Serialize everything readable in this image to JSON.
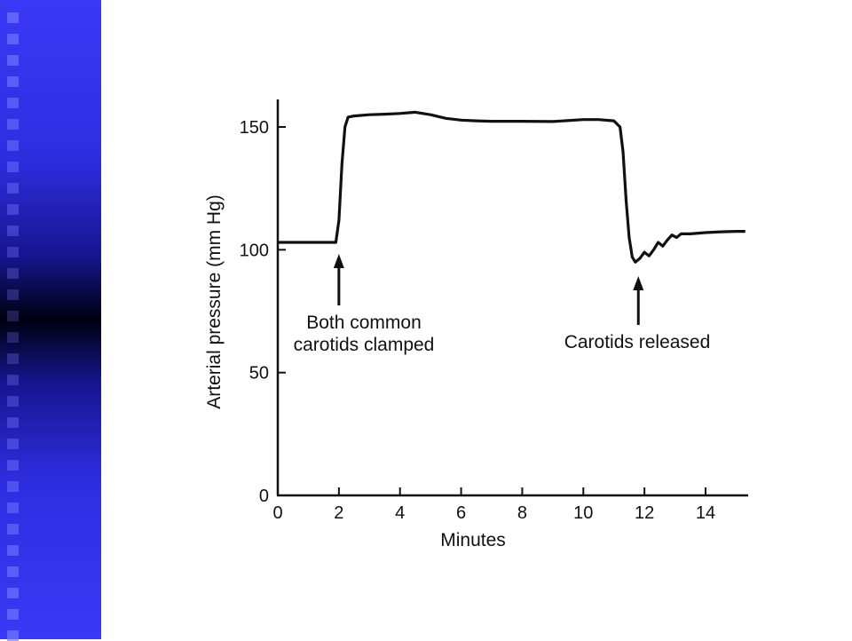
{
  "colors": {
    "sidebar_accent": "#3a3af6",
    "sidebar_dark": "#000010",
    "trace": "#111111"
  },
  "chart_data": {
    "type": "line",
    "title": "",
    "xlabel": "Minutes",
    "ylabel": "Arterial pressure (mm Hg)",
    "xlim": [
      0,
      15.3
    ],
    "ylim": [
      0,
      162
    ],
    "xticks": [
      0,
      2,
      4,
      6,
      8,
      10,
      12,
      14
    ],
    "yticks": [
      0,
      50,
      100,
      150
    ],
    "grid": false,
    "series": [
      {
        "x": [
          0,
          0.5,
          1.0,
          1.5,
          1.8,
          1.9,
          2.0,
          2.1,
          2.2,
          2.3,
          2.5,
          3.0,
          3.5,
          4.0,
          4.5,
          5.0,
          5.5,
          6.0,
          6.5,
          7.0,
          8.0,
          9.0,
          10.0,
          10.5,
          11.0,
          11.2,
          11.3,
          11.4,
          11.5,
          11.6,
          11.7,
          11.85,
          12.0,
          12.15,
          12.3,
          12.45,
          12.6,
          12.75,
          12.9,
          13.05,
          13.2,
          13.5,
          14.0,
          14.5,
          15.0,
          15.3
        ],
        "y": [
          103,
          103,
          103,
          103,
          103,
          103,
          112,
          135,
          150,
          154,
          154.5,
          155,
          155.2,
          155.5,
          156,
          155,
          153.5,
          152.8,
          152.5,
          152.3,
          152.3,
          152.2,
          153,
          153,
          152.5,
          150,
          140,
          120,
          105,
          97,
          95,
          96.5,
          99,
          97.5,
          100,
          103,
          101.5,
          104,
          106,
          105,
          106.5,
          106.5,
          107,
          107.3,
          107.5,
          107.5
        ]
      }
    ],
    "annotations": [
      {
        "x": 2.0,
        "lines": [
          "Both common",
          "carotids clamped"
        ]
      },
      {
        "x": 11.8,
        "lines": [
          "Carotids released"
        ]
      }
    ]
  }
}
